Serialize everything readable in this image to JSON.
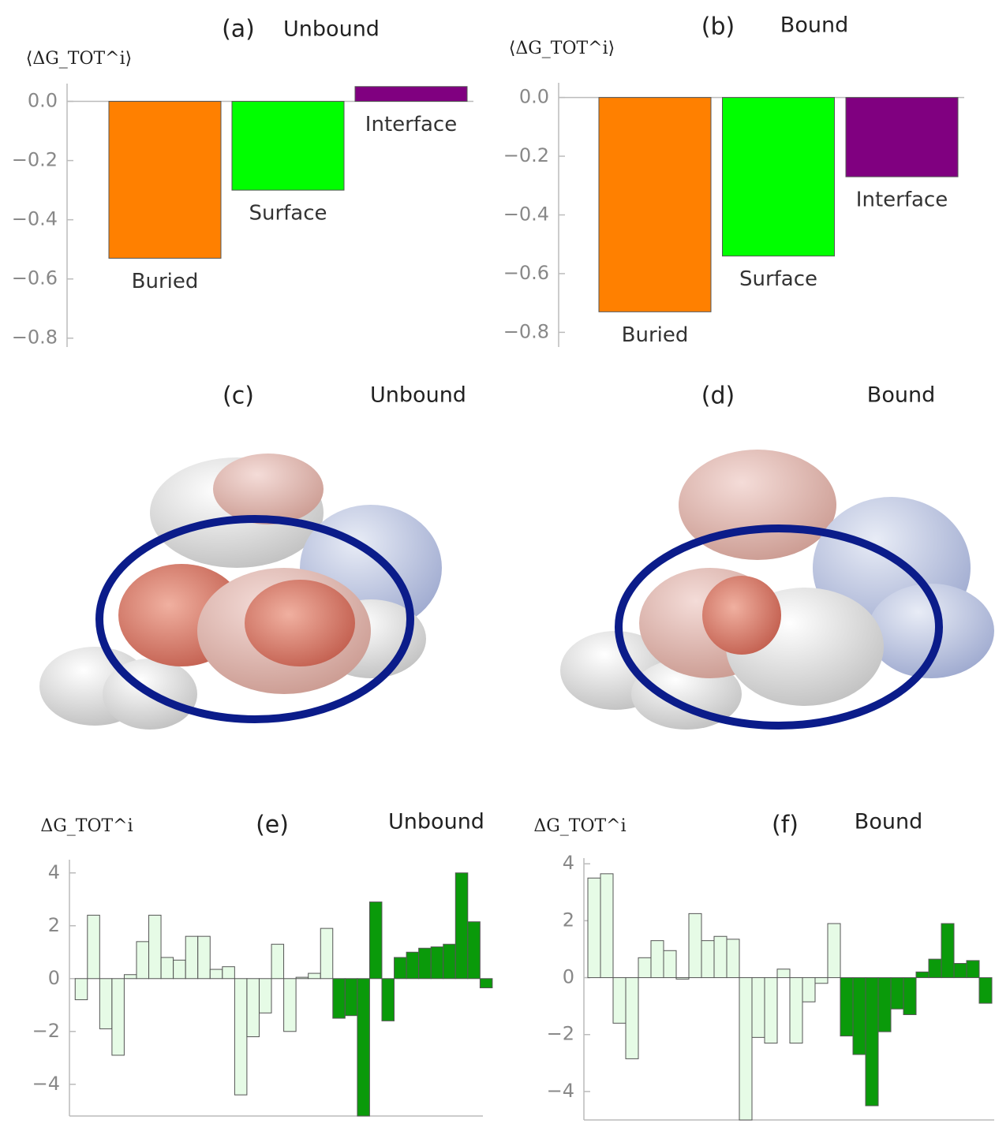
{
  "chart_data": [
    {
      "type": "bar",
      "panel": "(a)",
      "title": "Unbound",
      "y_label": "⟨ΔG_TOT^i⟩",
      "categories": [
        "Buried",
        "Surface",
        "Interface"
      ],
      "values": [
        -0.53,
        -0.3,
        0.05
      ],
      "colors": [
        "#ff8000",
        "#00ff00",
        "#800080"
      ],
      "ylim": [
        -0.83,
        0.06
      ],
      "yticks": [
        {
          "value": 0,
          "label": "0.0"
        },
        {
          "value": -0.2,
          "label": "−0.2"
        },
        {
          "value": -0.4,
          "label": "−0.4"
        },
        {
          "value": -0.6,
          "label": "−0.6"
        },
        {
          "value": -0.8,
          "label": "−0.8"
        }
      ]
    },
    {
      "type": "bar",
      "panel": "(b)",
      "title": "Bound",
      "y_label": "⟨ΔG_TOT^i⟩",
      "categories": [
        "Buried",
        "Surface",
        "Interface"
      ],
      "values": [
        -0.73,
        -0.54,
        -0.27
      ],
      "colors": [
        "#ff8000",
        "#00ff00",
        "#800080"
      ],
      "ylim": [
        -0.85,
        0.05
      ],
      "yticks": [
        {
          "value": 0,
          "label": "0.0"
        },
        {
          "value": -0.2,
          "label": "−0.2"
        },
        {
          "value": -0.4,
          "label": "−0.4"
        },
        {
          "value": -0.6,
          "label": "−0.6"
        },
        {
          "value": -0.8,
          "label": "−0.8"
        }
      ]
    },
    {
      "type": "bar",
      "panel": "(e)",
      "title": "Unbound",
      "y_label": "ΔG_TOT^i",
      "values": [
        -0.8,
        2.4,
        -1.9,
        -2.9,
        0.15,
        1.4,
        2.4,
        0.8,
        0.7,
        1.6,
        1.6,
        0.35,
        0.45,
        -4.4,
        -2.2,
        -1.3,
        1.3,
        -2.0,
        0.05,
        0.2,
        1.9,
        -1.5,
        -1.4,
        -5.2,
        2.9,
        -1.6,
        0.8,
        1.0,
        1.15,
        1.2,
        1.3,
        4.0,
        2.15,
        -0.35
      ],
      "colors": [
        "#e6fbe6",
        "#e6fbe6",
        "#e6fbe6",
        "#e6fbe6",
        "#e6fbe6",
        "#e6fbe6",
        "#e6fbe6",
        "#e6fbe6",
        "#e6fbe6",
        "#e6fbe6",
        "#e6fbe6",
        "#e6fbe6",
        "#e6fbe6",
        "#e6fbe6",
        "#e6fbe6",
        "#e6fbe6",
        "#e6fbe6",
        "#e6fbe6",
        "#e6fbe6",
        "#e6fbe6",
        "#e6fbe6",
        "#0a9a0a",
        "#0a9a0a",
        "#0a9a0a",
        "#0a9a0a",
        "#0a9a0a",
        "#0a9a0a",
        "#0a9a0a",
        "#0a9a0a",
        "#0a9a0a",
        "#0a9a0a",
        "#0a9a0a",
        "#0a9a0a",
        "#0a9a0a"
      ],
      "ylim": [
        -5.2,
        4.5
      ],
      "yticks": [
        4,
        2,
        0,
        {
          "value": -2,
          "label": "−2"
        },
        {
          "value": -4,
          "label": "−4"
        }
      ]
    },
    {
      "type": "bar",
      "panel": "(f)",
      "title": "Bound",
      "y_label": "ΔG_TOT^i",
      "values": [
        3.5,
        3.65,
        -1.6,
        -2.85,
        0.7,
        1.3,
        0.95,
        -0.05,
        2.25,
        1.3,
        1.45,
        1.35,
        -5.0,
        -2.1,
        -2.3,
        0.3,
        -2.3,
        -0.85,
        -0.2,
        1.9,
        -2.05,
        -2.7,
        -4.5,
        -1.9,
        -1.1,
        -1.3,
        0.2,
        0.65,
        1.9,
        0.5,
        0.6,
        -0.9
      ],
      "colors": [
        "#e6fbe6",
        "#e6fbe6",
        "#e6fbe6",
        "#e6fbe6",
        "#e6fbe6",
        "#e6fbe6",
        "#e6fbe6",
        "#e6fbe6",
        "#e6fbe6",
        "#e6fbe6",
        "#e6fbe6",
        "#e6fbe6",
        "#e6fbe6",
        "#e6fbe6",
        "#e6fbe6",
        "#e6fbe6",
        "#e6fbe6",
        "#e6fbe6",
        "#e6fbe6",
        "#e6fbe6",
        "#0a9a0a",
        "#0a9a0a",
        "#0a9a0a",
        "#0a9a0a",
        "#0a9a0a",
        "#0a9a0a",
        "#0a9a0a",
        "#0a9a0a",
        "#0a9a0a",
        "#0a9a0a",
        "#0a9a0a",
        "#0a9a0a"
      ],
      "ylim": [
        -5.0,
        4.2
      ],
      "yticks": [
        4,
        2,
        0,
        {
          "value": -2,
          "label": "−2"
        },
        {
          "value": -4,
          "label": "−4"
        }
      ]
    }
  ],
  "images": [
    {
      "label": "(c)",
      "title": "Unbound"
    },
    {
      "label": "(d)",
      "title": "Bound"
    }
  ]
}
